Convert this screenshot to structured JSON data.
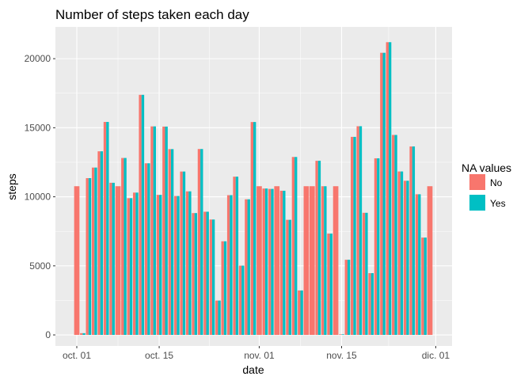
{
  "chart_data": {
    "type": "bar",
    "title": "Number of steps taken each day",
    "xlabel": "date",
    "ylabel": "steps",
    "x_ticks": [
      "oct. 01",
      "oct. 15",
      "nov. 01",
      "nov. 15",
      "dic. 01"
    ],
    "y_ticks": [
      "0",
      "5000",
      "10000",
      "15000",
      "20000"
    ],
    "ylim": [
      -800,
      22300
    ],
    "grid": true,
    "legend": {
      "title": "NA values",
      "placement": "right",
      "entries": [
        {
          "label": "No",
          "color": "#F8766D"
        },
        {
          "label": "Yes",
          "color": "#00BFC4"
        }
      ]
    },
    "categories": [
      "2012-10-01",
      "2012-10-02",
      "2012-10-03",
      "2012-10-04",
      "2012-10-05",
      "2012-10-06",
      "2012-10-07",
      "2012-10-08",
      "2012-10-09",
      "2012-10-10",
      "2012-10-11",
      "2012-10-12",
      "2012-10-13",
      "2012-10-14",
      "2012-10-15",
      "2012-10-16",
      "2012-10-17",
      "2012-10-18",
      "2012-10-19",
      "2012-10-20",
      "2012-10-21",
      "2012-10-22",
      "2012-10-23",
      "2012-10-24",
      "2012-10-25",
      "2012-10-26",
      "2012-10-27",
      "2012-10-28",
      "2012-10-29",
      "2012-10-30",
      "2012-10-31",
      "2012-11-01",
      "2012-11-02",
      "2012-11-03",
      "2012-11-04",
      "2012-11-05",
      "2012-11-06",
      "2012-11-07",
      "2012-11-08",
      "2012-11-09",
      "2012-11-10",
      "2012-11-11",
      "2012-11-12",
      "2012-11-13",
      "2012-11-14",
      "2012-11-15",
      "2012-11-16",
      "2012-11-17",
      "2012-11-18",
      "2012-11-19",
      "2012-11-20",
      "2012-11-21",
      "2012-11-22",
      "2012-11-23",
      "2012-11-24",
      "2012-11-25",
      "2012-11-26",
      "2012-11-27",
      "2012-11-28",
      "2012-11-29",
      "2012-11-30"
    ],
    "series": [
      {
        "name": "No",
        "color": "#F8766D",
        "values": [
          10766,
          126,
          11352,
          12116,
          13294,
          15420,
          11015,
          10766,
          12811,
          9900,
          10304,
          17382,
          12426,
          15098,
          10139,
          15084,
          13452,
          10056,
          11829,
          10395,
          8821,
          13460,
          8918,
          8355,
          2492,
          6778,
          10119,
          11458,
          5018,
          9819,
          15414,
          10766,
          10600,
          10571,
          10766,
          10439,
          8334,
          12883,
          3219,
          10766,
          10766,
          12608,
          10765,
          7336,
          10766,
          41,
          5441,
          14339,
          15110,
          8841,
          4472,
          12787,
          20427,
          21194,
          14478,
          11834,
          11162,
          13646,
          10183,
          7047,
          10766
        ]
      },
      {
        "name": "Yes",
        "color": "#00BFC4",
        "values": [
          10766,
          126,
          11352,
          12116,
          13294,
          15420,
          11015,
          10766,
          12811,
          9900,
          10304,
          17382,
          12426,
          15098,
          10139,
          15084,
          13452,
          10056,
          11829,
          10395,
          8821,
          13460,
          8918,
          8355,
          2492,
          6778,
          10119,
          11458,
          5018,
          9819,
          15414,
          10766,
          10600,
          10571,
          10766,
          10439,
          8334,
          12883,
          3219,
          10766,
          10766,
          12608,
          10765,
          7336,
          10766,
          41,
          5441,
          14339,
          15110,
          8841,
          4472,
          12787,
          20427,
          21194,
          14478,
          11834,
          11162,
          13646,
          10183,
          7047,
          10766
        ]
      }
    ],
    "na_days": [
      "2012-10-01",
      "2012-10-08",
      "2012-11-01",
      "2012-11-04",
      "2012-11-09",
      "2012-11-10",
      "2012-11-14",
      "2012-11-30"
    ]
  }
}
